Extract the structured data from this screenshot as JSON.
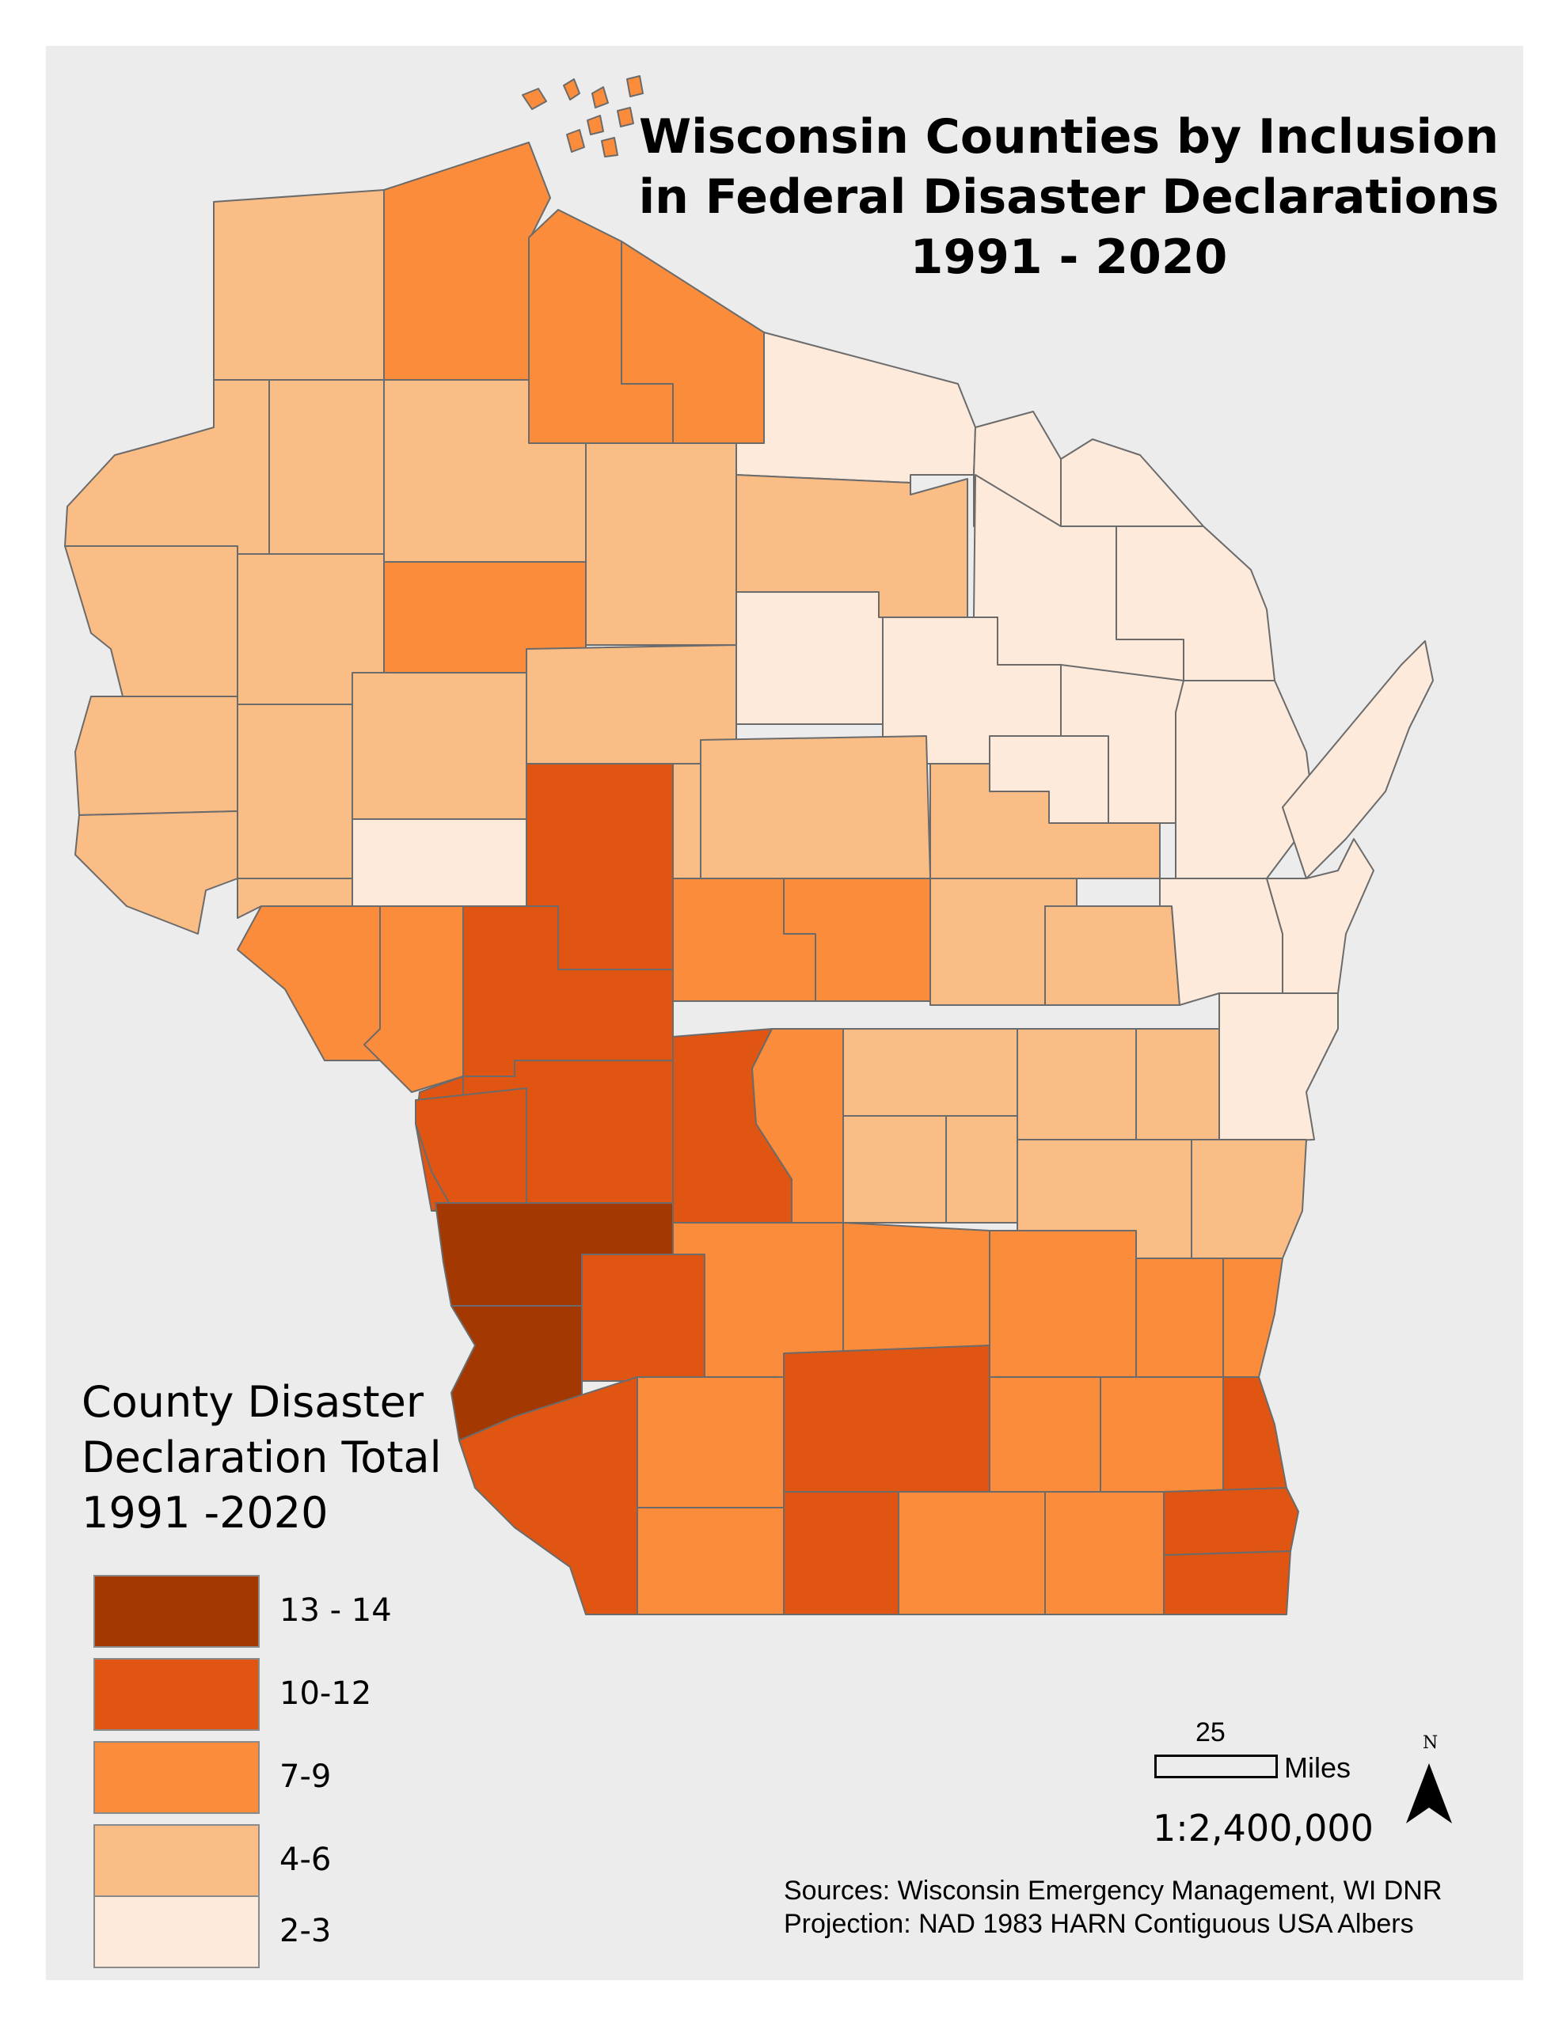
{
  "map": {
    "title_lines": [
      "Wisconsin Counties by Inclusion",
      "in Federal Disaster Declarations",
      "1991 - 2020"
    ],
    "classes": {
      "c13_14": "#a33800",
      "c10_12": "#e05512",
      "c7_9": "#fb8c3b",
      "c4_6": "#fbbd86",
      "c2_3": "#feeadb"
    },
    "water_color": "#ececec",
    "border_color": "#6b6b6b"
  },
  "legend": {
    "title_lines": [
      "County Disaster",
      "Declaration Total",
      "1991 -2020"
    ],
    "items": [
      {
        "label": "13 - 14",
        "class": "c13_14"
      },
      {
        "label": "10-12",
        "class": "c10_12"
      },
      {
        "label": "7-9",
        "class": "c7_9"
      },
      {
        "label": "4-6",
        "class": "c4_6"
      },
      {
        "label": "2-3",
        "class": "c2_3"
      }
    ]
  },
  "scale": {
    "distance_label": "25",
    "units_label": "Miles",
    "ratio": "1:2,400,000"
  },
  "north_arrow": {
    "letter": "N",
    "icon": "north-arrow-icon"
  },
  "sources": [
    "Sources: Wisconsin Emergency Management, WI DNR",
    "Projection: NAD 1983 HARN Contiguous USA Albers"
  ]
}
